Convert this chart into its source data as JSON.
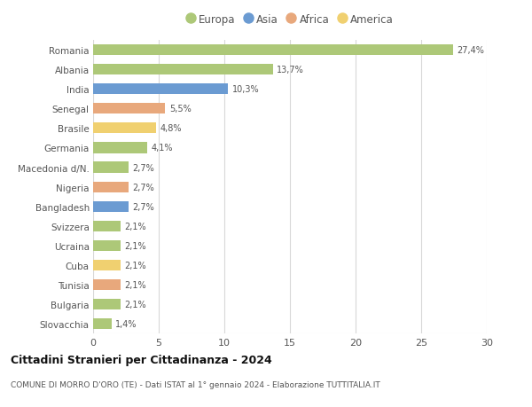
{
  "countries": [
    "Romania",
    "Albania",
    "India",
    "Senegal",
    "Brasile",
    "Germania",
    "Macedonia d/N.",
    "Nigeria",
    "Bangladesh",
    "Svizzera",
    "Ucraina",
    "Cuba",
    "Tunisia",
    "Bulgaria",
    "Slovacchia"
  ],
  "values": [
    27.4,
    13.7,
    10.3,
    5.5,
    4.8,
    4.1,
    2.7,
    2.7,
    2.7,
    2.1,
    2.1,
    2.1,
    2.1,
    2.1,
    1.4
  ],
  "labels": [
    "27,4%",
    "13,7%",
    "10,3%",
    "5,5%",
    "4,8%",
    "4,1%",
    "2,7%",
    "2,7%",
    "2,7%",
    "2,1%",
    "2,1%",
    "2,1%",
    "2,1%",
    "2,1%",
    "1,4%"
  ],
  "continents": [
    "Europa",
    "Europa",
    "Asia",
    "Africa",
    "America",
    "Europa",
    "Europa",
    "Africa",
    "Asia",
    "Europa",
    "Europa",
    "America",
    "Africa",
    "Europa",
    "Europa"
  ],
  "colors": {
    "Europa": "#adc878",
    "Asia": "#6b9bd2",
    "Africa": "#e8a87c",
    "America": "#f0d070"
  },
  "legend_order": [
    "Europa",
    "Asia",
    "Africa",
    "America"
  ],
  "title": "Cittadini Stranieri per Cittadinanza - 2024",
  "subtitle": "COMUNE DI MORRO D'ORO (TE) - Dati ISTAT al 1° gennaio 2024 - Elaborazione TUTTITALIA.IT",
  "xlim": [
    0,
    30
  ],
  "xticks": [
    0,
    5,
    10,
    15,
    20,
    25,
    30
  ],
  "bg_color": "#ffffff",
  "grid_color": "#d8d8d8",
  "bar_height": 0.55
}
